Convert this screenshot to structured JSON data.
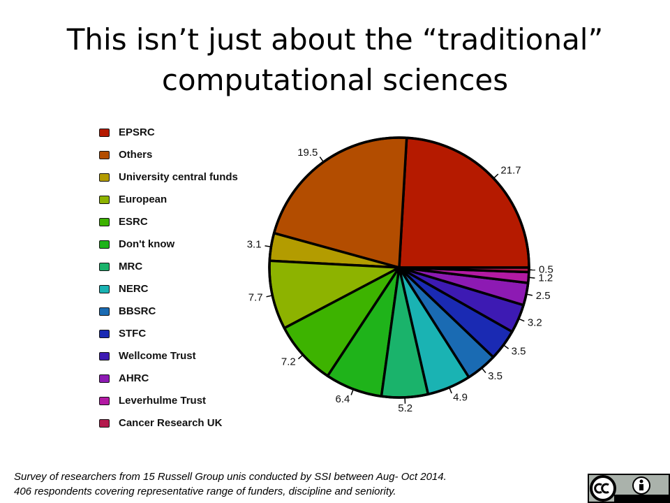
{
  "chart_data": {
    "type": "pie",
    "title": "This isn’t just about the “traditional” computational sciences",
    "categories": [
      "EPSRC",
      "Others",
      "University central funds",
      "European",
      "ESRC",
      "Don't know",
      "MRC",
      "NERC",
      "BBSRC",
      "STFC",
      "Wellcome Trust",
      "AHRC",
      "Leverhulme Trust",
      "Cancer Research UK"
    ],
    "values": [
      21.7,
      19.5,
      3.1,
      7.7,
      7.2,
      6.4,
      5.2,
      4.9,
      3.5,
      3.5,
      3.2,
      2.5,
      1.2,
      0.5
    ],
    "colors": [
      "#b51a00",
      "#b34d00",
      "#b39c00",
      "#8db300",
      "#3db300",
      "#1fb31a",
      "#1ab36b",
      "#1ab3b3",
      "#1a6bb3",
      "#1a2ab3",
      "#3d1ab3",
      "#8d1ab3",
      "#b31aa3",
      "#b31a4d"
    ],
    "legend": "left",
    "footnote": [
      "Survey of researchers from 15 Russell Group unis conducted by SSI between Aug- Oct 2014.",
      "406 respondents covering representative range of funders, discipline and seniority."
    ]
  }
}
